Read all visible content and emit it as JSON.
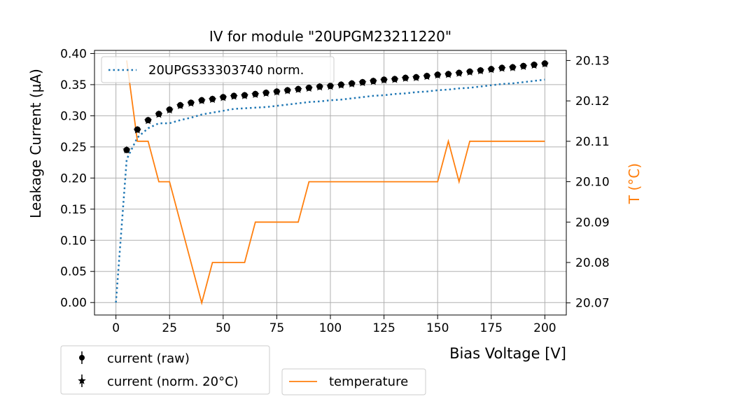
{
  "chart_data": {
    "type": "line",
    "title": "IV for module \"20UPGM23211220\"",
    "xlabel": "Bias Voltage [V]",
    "ylabel": "Leakage Current (µA)",
    "y2label": "T (°C)",
    "xlim": [
      -10,
      210
    ],
    "ylim": [
      -0.02,
      0.405
    ],
    "y2lim": [
      20.067,
      20.1325
    ],
    "xticks": [
      "0",
      "25",
      "50",
      "75",
      "100",
      "125",
      "150",
      "175",
      "200"
    ],
    "yticks": [
      "0.00",
      "0.05",
      "0.10",
      "0.15",
      "0.20",
      "0.25",
      "0.30",
      "0.35",
      "0.40"
    ],
    "y2ticks": [
      "20.07",
      "20.08",
      "20.09",
      "20.10",
      "20.11",
      "20.12",
      "20.13"
    ],
    "grid": true,
    "colors": {
      "reference": "#1f77b4",
      "temperature": "#ff7f0e",
      "markers": "#000000"
    },
    "series": [
      {
        "name": "20UPGS33303740 norm.",
        "style": "dotted",
        "axis": "left",
        "x": [
          0,
          5,
          10,
          15,
          20,
          25,
          30,
          35,
          40,
          45,
          50,
          55,
          60,
          65,
          70,
          75,
          80,
          85,
          90,
          95,
          100,
          105,
          110,
          115,
          120,
          125,
          130,
          135,
          140,
          145,
          150,
          155,
          160,
          165,
          170,
          175,
          180,
          185,
          190,
          195,
          200
        ],
        "y": [
          0.0,
          0.23,
          0.265,
          0.28,
          0.288,
          0.288,
          0.293,
          0.297,
          0.302,
          0.305,
          0.308,
          0.311,
          0.312,
          0.313,
          0.314,
          0.316,
          0.318,
          0.32,
          0.322,
          0.323,
          0.325,
          0.326,
          0.328,
          0.33,
          0.332,
          0.333,
          0.335,
          0.336,
          0.338,
          0.339,
          0.341,
          0.342,
          0.344,
          0.345,
          0.347,
          0.349,
          0.351,
          0.352,
          0.354,
          0.356,
          0.358
        ]
      },
      {
        "name": "current (raw)",
        "style": "marker-circle",
        "axis": "left",
        "x": [
          5,
          10,
          15,
          20,
          25,
          30,
          35,
          40,
          45,
          50,
          55,
          60,
          65,
          70,
          75,
          80,
          85,
          90,
          95,
          100,
          105,
          110,
          115,
          120,
          125,
          130,
          135,
          140,
          145,
          150,
          155,
          160,
          165,
          170,
          175,
          180,
          185,
          190,
          195,
          200
        ],
        "y": [
          0.245,
          0.278,
          0.293,
          0.303,
          0.31,
          0.317,
          0.321,
          0.325,
          0.327,
          0.33,
          0.332,
          0.333,
          0.335,
          0.337,
          0.339,
          0.341,
          0.343,
          0.345,
          0.347,
          0.348,
          0.35,
          0.352,
          0.354,
          0.356,
          0.358,
          0.359,
          0.361,
          0.362,
          0.364,
          0.366,
          0.367,
          0.369,
          0.371,
          0.373,
          0.375,
          0.377,
          0.378,
          0.38,
          0.382,
          0.384
        ]
      },
      {
        "name": "current (norm. 20°C)",
        "style": "marker-star",
        "axis": "left",
        "x": [
          5,
          10,
          15,
          20,
          25,
          30,
          35,
          40,
          45,
          50,
          55,
          60,
          65,
          70,
          75,
          80,
          85,
          90,
          95,
          100,
          105,
          110,
          115,
          120,
          125,
          130,
          135,
          140,
          145,
          150,
          155,
          160,
          165,
          170,
          175,
          180,
          185,
          190,
          195,
          200
        ],
        "y": [
          0.245,
          0.277,
          0.292,
          0.302,
          0.309,
          0.316,
          0.32,
          0.324,
          0.326,
          0.329,
          0.331,
          0.332,
          0.334,
          0.336,
          0.338,
          0.34,
          0.342,
          0.344,
          0.346,
          0.347,
          0.349,
          0.351,
          0.353,
          0.355,
          0.357,
          0.358,
          0.36,
          0.361,
          0.363,
          0.365,
          0.366,
          0.368,
          0.37,
          0.372,
          0.374,
          0.376,
          0.377,
          0.379,
          0.381,
          0.383
        ]
      },
      {
        "name": "temperature",
        "style": "solid",
        "axis": "right",
        "x": [
          5,
          10,
          15,
          20,
          25,
          40,
          45,
          50,
          55,
          60,
          65,
          70,
          75,
          80,
          85,
          90,
          95,
          100,
          150,
          155,
          160,
          165,
          170,
          200
        ],
        "y": [
          20.13,
          20.11,
          20.11,
          20.1,
          20.1,
          20.07,
          20.08,
          20.08,
          20.08,
          20.08,
          20.09,
          20.09,
          20.09,
          20.09,
          20.09,
          20.1,
          20.1,
          20.1,
          20.1,
          20.11,
          20.1,
          20.11,
          20.11,
          20.11
        ]
      }
    ],
    "legends": {
      "upper": {
        "placement": "top-left inside",
        "entries": [
          "20UPGS33303740 norm."
        ]
      },
      "lower_left": {
        "placement": "below-left",
        "entries": [
          "current (raw)",
          "current (norm. 20°C)"
        ]
      },
      "lower_right": {
        "placement": "below-center",
        "entries": [
          "temperature"
        ]
      }
    }
  }
}
